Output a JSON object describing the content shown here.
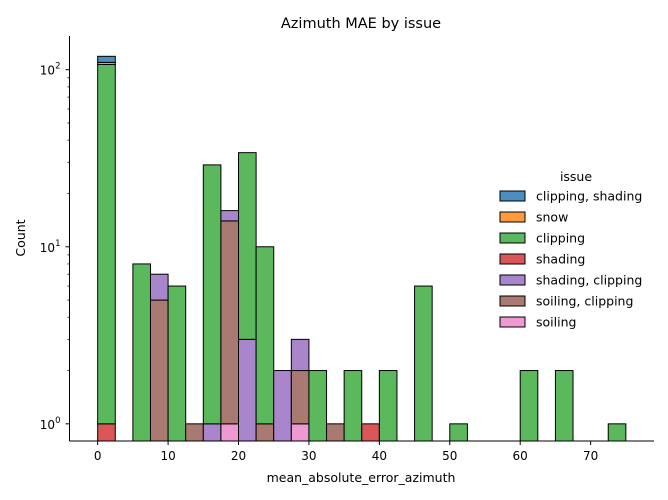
{
  "chart_data": {
    "type": "bar",
    "stacked": true,
    "title": "Azimuth MAE by issue",
    "xlabel": "mean_absolute_error_azimuth",
    "ylabel": "Count",
    "xlim": [
      -4,
      79
    ],
    "ylim": [
      0.8,
      155
    ],
    "yscale": "log",
    "bin_width": 2.5,
    "x_ticks": [
      0,
      10,
      20,
      30,
      40,
      50,
      60,
      70
    ],
    "y_ticks": [
      {
        "value": 1,
        "base": "10",
        "exp": "0"
      },
      {
        "value": 10,
        "base": "10",
        "exp": "1"
      },
      {
        "value": 100,
        "base": "10",
        "exp": "2"
      }
    ],
    "grid": false,
    "legend": {
      "title": "issue",
      "placement": "right",
      "entries": [
        "clipping, shading",
        "snow",
        "clipping",
        "shading",
        "shading, clipping",
        "soiling, clipping",
        "soiling"
      ]
    },
    "colors": {
      "clipping, shading": "#4C8EC0",
      "snow": "#FF9B3E",
      "clipping": "#5CB85C",
      "shading": "#DB5656",
      "shading, clipping": "#A985CC",
      "soiling, clipping": "#A87A72",
      "soiling": "#EE99D0"
    },
    "stack_order": [
      "soiling",
      "soiling, clipping",
      "shading, clipping",
      "shading",
      "clipping",
      "snow",
      "clipping, shading"
    ],
    "bins": [
      {
        "x0": 0,
        "counts": {
          "shading": 1,
          "clipping": 106,
          "snow": 3,
          "clipping, shading": 9
        }
      },
      {
        "x0": 5,
        "counts": {
          "clipping": 8
        }
      },
      {
        "x0": 7.5,
        "counts": {
          "soiling, clipping": 5,
          "shading, clipping": 2
        }
      },
      {
        "x0": 10,
        "counts": {
          "clipping": 6
        }
      },
      {
        "x0": 12.5,
        "counts": {
          "soiling, clipping": 1
        }
      },
      {
        "x0": 15,
        "counts": {
          "shading, clipping": 1,
          "clipping": 28
        }
      },
      {
        "x0": 17.5,
        "counts": {
          "soiling": 1,
          "soiling, clipping": 13,
          "shading, clipping": 2
        }
      },
      {
        "x0": 20,
        "counts": {
          "shading, clipping": 3,
          "clipping": 31
        }
      },
      {
        "x0": 22.5,
        "counts": {
          "soiling, clipping": 1,
          "clipping": 9
        }
      },
      {
        "x0": 25,
        "counts": {
          "shading, clipping": 2
        }
      },
      {
        "x0": 27.5,
        "counts": {
          "soiling": 1,
          "soiling, clipping": 1,
          "shading, clipping": 1
        }
      },
      {
        "x0": 30,
        "counts": {
          "clipping": 2
        }
      },
      {
        "x0": 32.5,
        "counts": {
          "soiling, clipping": 1
        }
      },
      {
        "x0": 35,
        "counts": {
          "clipping": 2
        }
      },
      {
        "x0": 37.5,
        "counts": {
          "shading": 1
        }
      },
      {
        "x0": 40,
        "counts": {
          "clipping": 2
        }
      },
      {
        "x0": 45,
        "counts": {
          "clipping": 6
        }
      },
      {
        "x0": 50,
        "counts": {
          "clipping": 1
        }
      },
      {
        "x0": 60,
        "counts": {
          "clipping": 2
        }
      },
      {
        "x0": 65,
        "counts": {
          "clipping": 2
        }
      },
      {
        "x0": 72.5,
        "counts": {
          "clipping": 1
        }
      }
    ]
  }
}
